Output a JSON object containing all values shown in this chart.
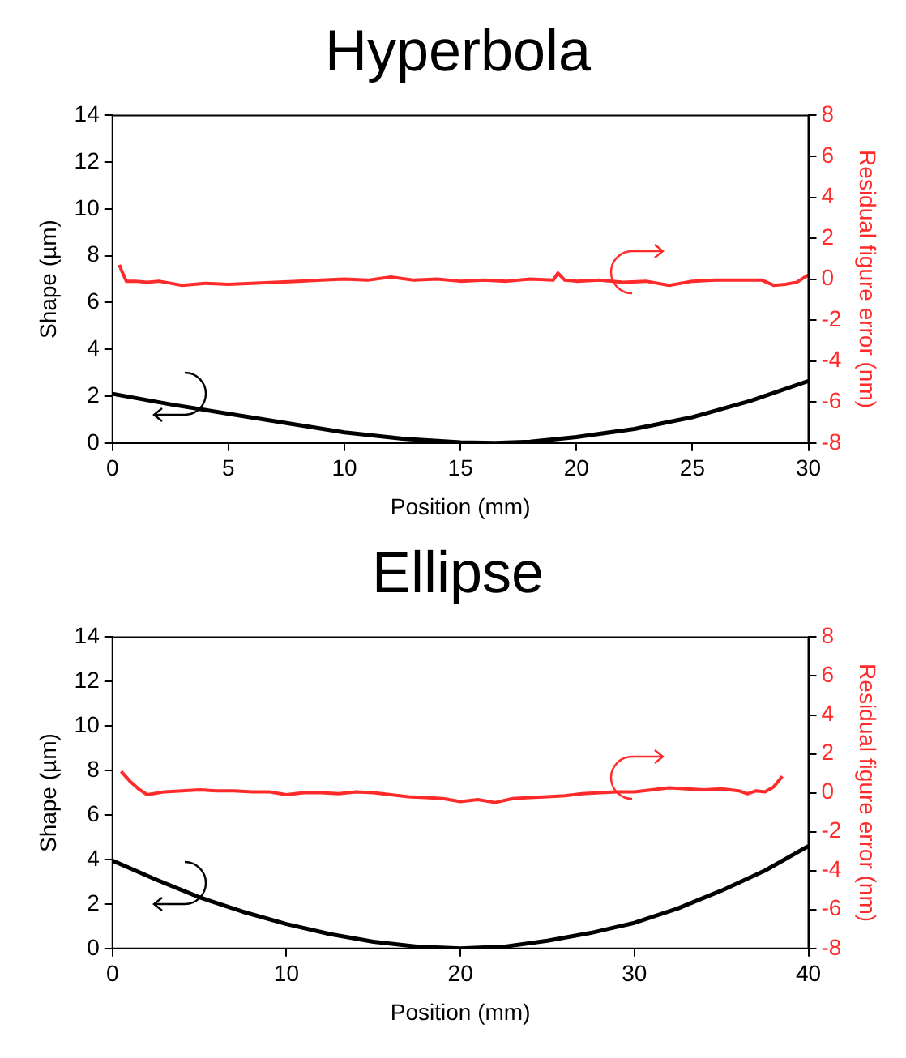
{
  "chart_data": [
    {
      "type": "line",
      "title": "Hyperbola",
      "xlabel": "Position (mm)",
      "ylabel": "Shape (µm)",
      "y2label": "Residual figure error (nm)",
      "xlim": [
        0,
        30
      ],
      "xticks": [
        0,
        5,
        10,
        15,
        20,
        25,
        30
      ],
      "ylim": [
        0,
        14
      ],
      "yticks": [
        0,
        2,
        4,
        6,
        8,
        10,
        12,
        14
      ],
      "y2lim": [
        -8,
        8
      ],
      "y2ticks": [
        -8,
        -6,
        -4,
        -2,
        0,
        2,
        4,
        6,
        8
      ],
      "grid": false,
      "marker": "none",
      "line_style": "solid",
      "series": [
        {
          "color": "#000000",
          "x": [
            0,
            2.5,
            5,
            7.5,
            10,
            12.5,
            15,
            16.5,
            18,
            20,
            22.5,
            25,
            27.5,
            30
          ],
          "values": [
            2.1,
            1.65,
            1.25,
            0.85,
            0.45,
            0.18,
            0.03,
            0,
            0.05,
            0.25,
            0.6,
            1.1,
            1.8,
            2.65
          ]
        },
        {
          "color": "#ff2a2a",
          "axis": "y2",
          "x": [
            0.3,
            0.4,
            0.6,
            1,
            1.5,
            2,
            2.5,
            3,
            3.5,
            4,
            5,
            6,
            7,
            8,
            9,
            10,
            11,
            12,
            13,
            14,
            15,
            16,
            17,
            18,
            19,
            19.2,
            19.5,
            20,
            21,
            22,
            23,
            24,
            25,
            26,
            27,
            28,
            28.5,
            29,
            29.5,
            30
          ],
          "values": [
            0.7,
            0.4,
            -0.1,
            -0.1,
            -0.15,
            -0.1,
            -0.2,
            -0.3,
            -0.25,
            -0.2,
            -0.25,
            -0.2,
            -0.15,
            -0.1,
            -0.05,
            0,
            -0.05,
            0.1,
            -0.05,
            0,
            -0.1,
            -0.05,
            -0.1,
            0,
            -0.05,
            0.3,
            -0.05,
            -0.1,
            -0.05,
            -0.15,
            -0.1,
            -0.3,
            -0.1,
            -0.05,
            -0.05,
            -0.05,
            -0.3,
            -0.25,
            -0.15,
            0.2
          ]
        }
      ]
    },
    {
      "type": "line",
      "title": "Ellipse",
      "xlabel": "Position (mm)",
      "ylabel": "Shape (µm)",
      "y2label": "Residual figure error (nm)",
      "xlim": [
        0,
        40
      ],
      "xticks": [
        0,
        10,
        20,
        30,
        40
      ],
      "ylim": [
        0,
        14
      ],
      "yticks": [
        0,
        2,
        4,
        6,
        8,
        10,
        12,
        14
      ],
      "y2lim": [
        -8,
        8
      ],
      "y2ticks": [
        -8,
        -6,
        -4,
        -2,
        0,
        2,
        4,
        6,
        8
      ],
      "grid": false,
      "marker": "none",
      "line_style": "solid",
      "series": [
        {
          "color": "#000000",
          "x": [
            0,
            2.5,
            5,
            7.5,
            10,
            12.5,
            15,
            17.5,
            20,
            22.5,
            25,
            27.5,
            30,
            32.5,
            35,
            37.5,
            40
          ],
          "values": [
            3.95,
            3.1,
            2.3,
            1.65,
            1.1,
            0.65,
            0.3,
            0.08,
            0,
            0.08,
            0.35,
            0.7,
            1.15,
            1.8,
            2.6,
            3.5,
            4.6
          ]
        },
        {
          "color": "#ff2a2a",
          "x": [
            0.5,
            1,
            1.5,
            2,
            3,
            4,
            5,
            6,
            7,
            8,
            9,
            10,
            11,
            12,
            13,
            14,
            15,
            16,
            17,
            18,
            19,
            20,
            21,
            22,
            23,
            24,
            25,
            26,
            27,
            28,
            29,
            30,
            31,
            32,
            33,
            34,
            35,
            36,
            36.5,
            37,
            37.5,
            38,
            38.5
          ],
          "axis": "y2",
          "values": [
            1.1,
            0.6,
            0.2,
            -0.1,
            0.05,
            0.1,
            0.15,
            0.1,
            0.1,
            0.05,
            0.05,
            -0.1,
            0,
            0,
            -0.05,
            0.05,
            0,
            -0.1,
            -0.2,
            -0.25,
            -0.3,
            -0.45,
            -0.35,
            -0.5,
            -0.3,
            -0.25,
            -0.2,
            -0.15,
            -0.05,
            0,
            0.05,
            0.05,
            0.15,
            0.25,
            0.2,
            0.15,
            0.2,
            0.1,
            -0.05,
            0.1,
            0.05,
            0.3,
            0.85
          ]
        }
      ]
    }
  ]
}
